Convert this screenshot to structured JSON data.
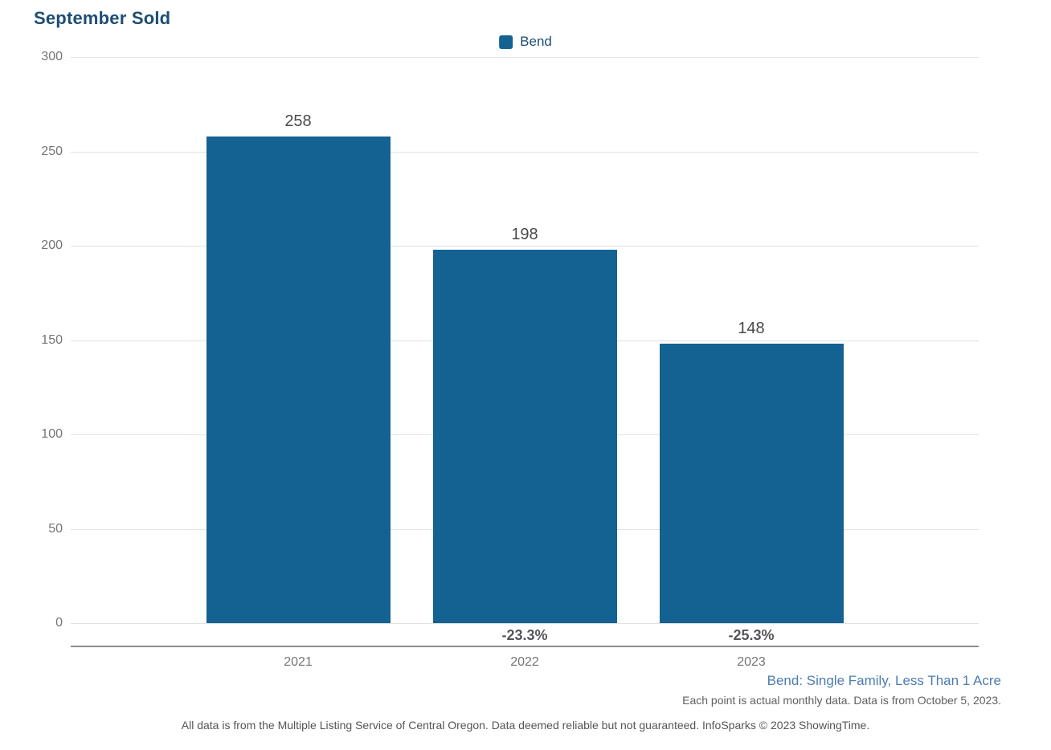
{
  "title": "September Sold",
  "legend": {
    "label": "Bend"
  },
  "chart_data": {
    "type": "bar",
    "title": "September Sold",
    "categories": [
      "2021",
      "2022",
      "2023"
    ],
    "series": [
      {
        "name": "Bend",
        "values": [
          258,
          198,
          148
        ]
      }
    ],
    "value_labels": [
      "258",
      "198",
      "148"
    ],
    "pct_change_labels": [
      "",
      "-23.3%",
      "-25.3%"
    ],
    "xlabel": "",
    "ylabel": "",
    "ylim": [
      0,
      300
    ],
    "yticks": [
      0,
      50,
      100,
      150,
      200,
      250,
      300
    ],
    "grid": true,
    "legend_position": "top-center",
    "bar_color": "#136292"
  },
  "footnotes": {
    "series_description": "Bend: Single Family, Less Than 1 Acre",
    "data_note": "Each point is actual monthly data. Data is from October 5, 2023.",
    "disclaimer": "All data is from the Multiple Listing Service of Central Oregon. Data deemed reliable but not guaranteed. InfoSparks © 2023 ShowingTime."
  },
  "colors": {
    "bar": "#136292",
    "title_text": "#1d4e74",
    "legend_text": "#1d4e74",
    "series_description_text": "#4d7cb0",
    "axis_text": "#757575",
    "value_label_text": "#4a4a4a",
    "pct_label_text": "#55565a",
    "gridline": "#e2e2e2",
    "axis_line": "#8c8c8c",
    "note_text": "#606060"
  }
}
